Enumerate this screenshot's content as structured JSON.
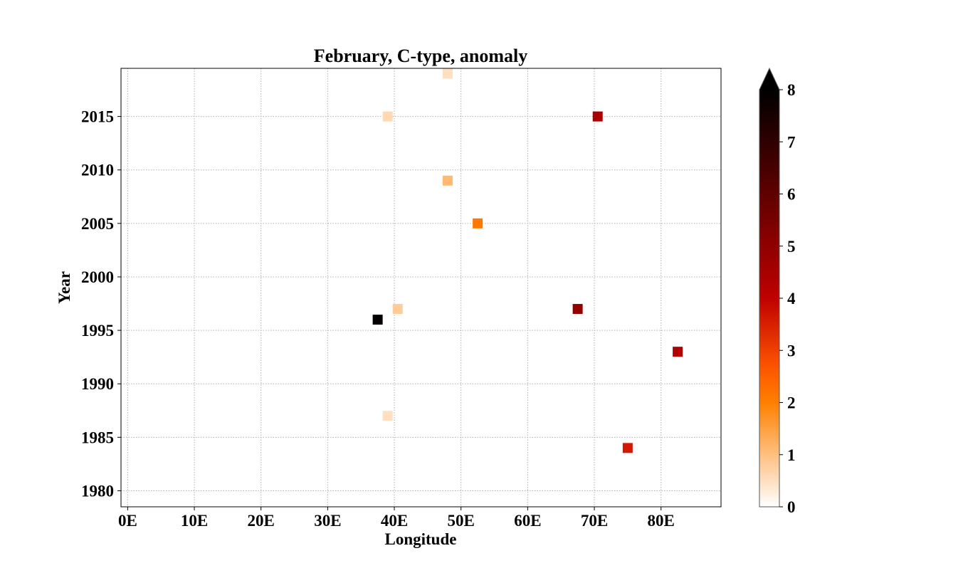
{
  "chart_data": {
    "type": "scatter",
    "title": "February, C-type, anomaly",
    "xlabel": "Longitude",
    "ylabel": "Year",
    "xlim": [
      -1,
      89
    ],
    "ylim": [
      1978.5,
      2019.5
    ],
    "xticks": [
      0,
      10,
      20,
      30,
      40,
      50,
      60,
      70,
      80
    ],
    "xtick_labels": [
      "0E",
      "10E",
      "20E",
      "30E",
      "40E",
      "50E",
      "60E",
      "70E",
      "80E"
    ],
    "yticks": [
      1980,
      1985,
      1990,
      1995,
      2000,
      2005,
      2010,
      2015
    ],
    "ytick_labels": [
      "1980",
      "1985",
      "1990",
      "1995",
      "2000",
      "2005",
      "2010",
      "2015"
    ],
    "grid": true,
    "marker": "square",
    "points": [
      {
        "x": 48,
        "y": 2019,
        "value": 0.5
      },
      {
        "x": 39,
        "y": 2015,
        "value": 0.6
      },
      {
        "x": 70.5,
        "y": 2015,
        "value": 4.4
      },
      {
        "x": 48,
        "y": 2009,
        "value": 1.1
      },
      {
        "x": 52.5,
        "y": 2005,
        "value": 2.1
      },
      {
        "x": 40.5,
        "y": 1997,
        "value": 0.8
      },
      {
        "x": 67.5,
        "y": 1997,
        "value": 4.9
      },
      {
        "x": 37.5,
        "y": 1996,
        "value": 7.9
      },
      {
        "x": 82.5,
        "y": 1993,
        "value": 4.3
      },
      {
        "x": 39,
        "y": 1987,
        "value": 0.5
      },
      {
        "x": 75,
        "y": 1984,
        "value": 3.6
      }
    ],
    "colorbar": {
      "colormap": "gist_heat_r",
      "min": 0,
      "max": 8,
      "extend": "max",
      "ticks": [
        0,
        1,
        2,
        3,
        4,
        5,
        6,
        7,
        8
      ],
      "tick_labels": [
        "0",
        "1",
        "2",
        "3",
        "4",
        "5",
        "6",
        "7",
        "8"
      ],
      "position": "right"
    }
  }
}
